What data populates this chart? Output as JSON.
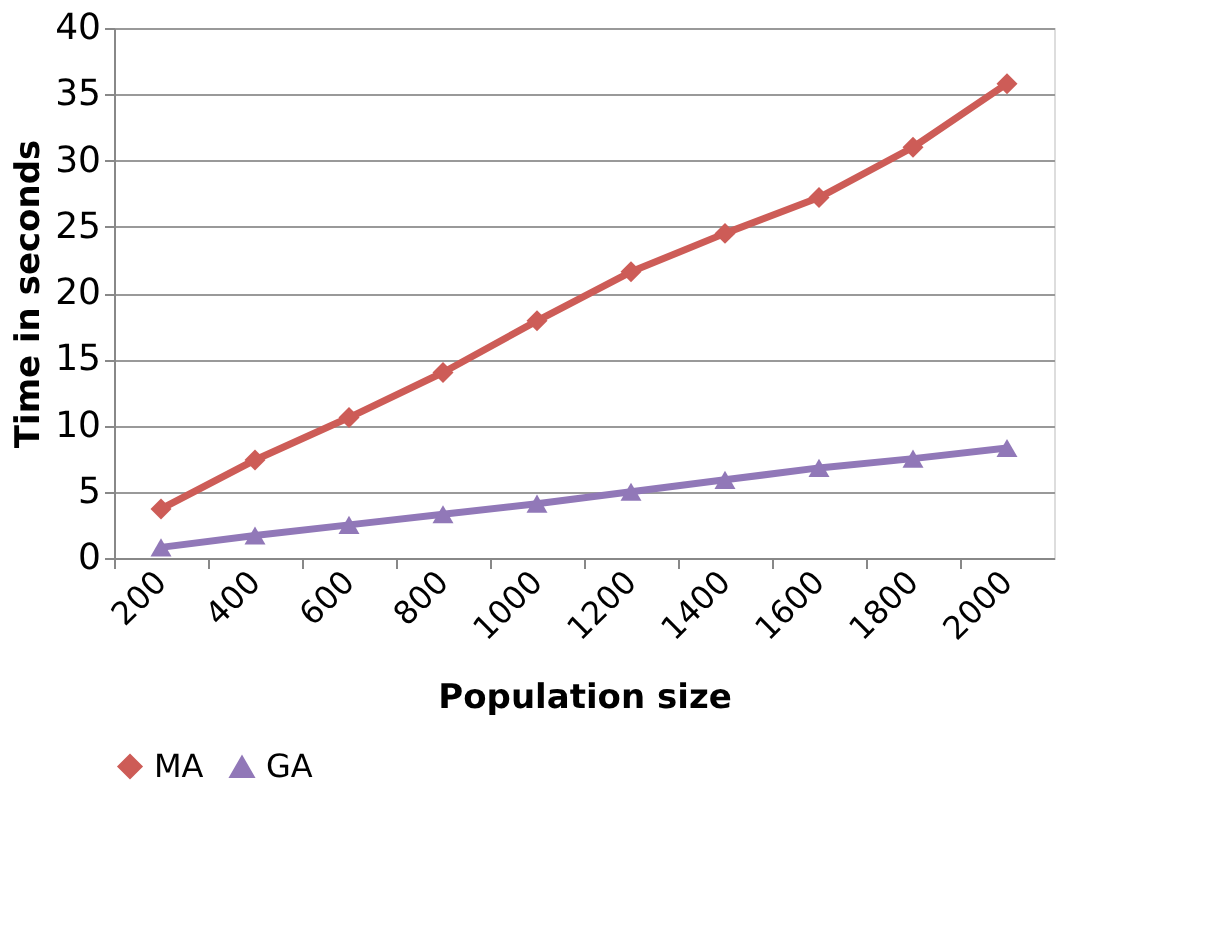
{
  "chart_data": {
    "type": "line",
    "xlabel": "Population size",
    "ylabel": "Time in seconds",
    "categories": [
      "200",
      "400",
      "600",
      "800",
      "1000",
      "1200",
      "1400",
      "1600",
      "1800",
      "2000"
    ],
    "series": [
      {
        "name": "MA",
        "color": "#cd5c57",
        "marker": "diamond",
        "values": [
          3.7,
          7.4,
          10.6,
          14.0,
          17.9,
          21.6,
          24.5,
          27.2,
          31.0,
          35.8
        ]
      },
      {
        "name": "GA",
        "color": "#9178b8",
        "marker": "triangle",
        "values": [
          0.8,
          1.7,
          2.5,
          3.3,
          4.1,
          5.0,
          5.9,
          6.8,
          7.5,
          8.3
        ]
      }
    ],
    "ylim": [
      0,
      40
    ],
    "yticks": [
      0,
      5,
      10,
      15,
      20,
      25,
      30,
      35,
      40
    ],
    "grid": "y",
    "legend": "bottom",
    "line_style": "solid"
  }
}
